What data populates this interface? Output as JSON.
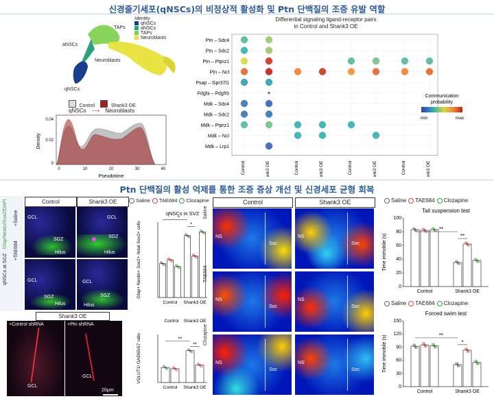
{
  "titles": {
    "top": "신경줄기세포(qNSCs)의 비정상적 활성화 및 Ptn 단백질의 조증 유발 역할",
    "bottom": "Ptn 단백질의 활성 억제를 통한 조증 증상 개선 및 신경세포 균형 회복"
  },
  "umap": {
    "legend_title": "Identity",
    "identities": [
      {
        "name": "qNSCs",
        "color": "#1a3e8c"
      },
      {
        "name": "aNSCs",
        "color": "#2aa37c"
      },
      {
        "name": "TAPs",
        "color": "#7cd04a"
      },
      {
        "name": "Neuroblasts",
        "color": "#e8e23a"
      }
    ],
    "cluster_labels": {
      "taps": "TAPs",
      "ansc": "aNSCs",
      "nb": "Neuroblasts",
      "qnsc": "qNSCs"
    },
    "conditions": [
      {
        "name": "Control",
        "color": "#dddddd"
      },
      {
        "name": "Shank3 OE",
        "color": "#a02020"
      }
    ],
    "trajectory": {
      "from": "qNSCs",
      "to": "Neuroblasts"
    }
  },
  "density": {
    "ylabel": "Density",
    "xlabel": "Pseudotime",
    "yticks": [
      "0.04",
      "0.02",
      "0"
    ],
    "xticks": [
      "0",
      "10",
      "20",
      "30",
      "40"
    ]
  },
  "bubble": {
    "title_line1": "Differential signaling ligand-receptor pairs",
    "title_line2": "in Control and Shank3 OE",
    "pairs": [
      "Ptn – Sdc4",
      "Ptn – Sdc2",
      "Ptn – Ptprz1",
      "Ptn – Ncl",
      "Psap – Gpr37l1",
      "Pdgfa – Pdgfrb",
      "Mdk – Sdc4",
      "Mdk – Sdc2",
      "Mdk – Ptprz1",
      "Mdk – Ncl",
      "Mdk – Lrp1"
    ],
    "conditions": [
      "Control",
      "Shank3 OE"
    ],
    "groups": [
      {
        "name": "qNSCs > qNSCs",
        "color": "#c02828"
      },
      {
        "name": "qNSCs > aNSCs",
        "color": "#7a9ad8"
      },
      {
        "name": "qNSCs > TAPs",
        "color": "#8ec9a8"
      },
      {
        "name": "qNSCs > NBs",
        "color": "#a8d88a"
      }
    ],
    "legend_title_line1": "Communication",
    "legend_title_line2": "probability",
    "legend_min": "min",
    "legend_max": "max",
    "dots": [
      [
        0,
        0,
        0.35
      ],
      [
        0,
        1,
        0.45
      ],
      [
        1,
        0,
        0.3
      ],
      [
        1,
        1,
        0.45
      ],
      [
        2,
        0,
        0.55
      ],
      [
        2,
        1,
        0.95
      ],
      [
        3,
        0,
        0.85
      ],
      [
        3,
        1,
        1.0
      ],
      [
        4,
        0,
        0.25
      ],
      [
        4,
        1,
        0.25
      ],
      [
        5,
        1,
        0.05
      ],
      [
        6,
        0,
        0.15
      ],
      [
        6,
        1,
        0.1
      ],
      [
        7,
        0,
        0.15
      ],
      [
        7,
        1,
        0.15
      ],
      [
        8,
        0,
        0.35
      ],
      [
        8,
        1,
        0.4
      ],
      [
        10,
        1,
        0.1
      ],
      [
        3,
        2,
        0.8
      ],
      [
        3,
        3,
        0.95
      ],
      [
        8,
        2,
        0.3
      ],
      [
        8,
        3,
        0.3
      ],
      [
        9,
        2,
        0.3
      ],
      [
        9,
        3,
        0.3
      ],
      [
        2,
        4,
        0.35
      ],
      [
        2,
        5,
        0.4
      ],
      [
        3,
        4,
        0.75
      ],
      [
        3,
        5,
        0.85
      ],
      [
        8,
        4,
        0.3
      ],
      [
        9,
        5,
        0.3
      ],
      [
        2,
        6,
        0.35
      ],
      [
        2,
        7,
        0.35
      ],
      [
        3,
        6,
        0.8
      ],
      [
        3,
        7,
        0.85
      ]
    ]
  },
  "legend_treat": [
    "Saline",
    "TAE684",
    "Clozapine"
  ],
  "treat_colors": {
    "Saline": "#666666",
    "TAE684": "#e04040",
    "Clozapine": "#30a030"
  },
  "micro": {
    "col_control": "Control",
    "col_shank": "Shank3 OE",
    "side_label": "qNSCs at SGZ",
    "stain": "Gfap/Nestin/Sox2/DAPI",
    "row_saline": "+Saline",
    "row_tae": "+TAE684",
    "gcl": "GCL",
    "sgz": "SGZ",
    "hilus": "Hilus",
    "shrna_title": "Shank3 OE",
    "shrna_control": "+Control shRNA",
    "shrna_ptn": "+Ptn shRNA",
    "scale": "20μm"
  },
  "qnsc_bar": {
    "title": "qNSCs in SVZ",
    "ylabel": "Gfap+ Nestin+ Sox2+ /total Sox2+ cells",
    "cats": [
      "Control",
      "Shank3 OE"
    ],
    "values": [
      [
        4.5,
        5.0,
        4.1
      ],
      [
        8.2,
        5.5,
        8.7
      ]
    ],
    "ylim": [
      0,
      10
    ],
    "sig": [
      "*",
      "*"
    ]
  },
  "vglut_bar": {
    "title_cats": [
      "Control",
      "Shank3 OE"
    ],
    "ylabel": "VGLUT1/ GAD65/67 ratio",
    "cats": [
      "Control",
      "Shank3 OE"
    ],
    "values": [
      [
        2.5,
        2.3
      ],
      [
        5.3,
        2.9
      ]
    ],
    "ylim": [
      0,
      8
    ],
    "sig": [
      "**",
      "**"
    ]
  },
  "heatmaps": {
    "col_control": "Control",
    "col_shank": "Shank3 OE",
    "rows": [
      "Saline",
      "TAE684",
      "Clozapine"
    ],
    "ns": "NS",
    "soc": "Soc"
  },
  "tst": {
    "title": "Tail suspension test",
    "ylabel": "Time immobile (s)",
    "cats": [
      "Control",
      "Shank3 OE"
    ],
    "values": [
      [
        83,
        82,
        83
      ],
      [
        35,
        62,
        38
      ]
    ],
    "ylim": [
      0,
      100
    ],
    "yticks": [
      "0",
      "20",
      "40",
      "60",
      "80",
      "100"
    ],
    "sig": [
      "**",
      "**"
    ]
  },
  "fst": {
    "title": "Forced swim test",
    "ylabel": "Time immobile (s)",
    "cats": [
      "Control",
      "Shank3 OE"
    ],
    "values": [
      [
        92,
        95,
        93
      ],
      [
        50,
        83,
        55
      ]
    ],
    "ylim": [
      0,
      150
    ],
    "yticks": [
      "0",
      "30",
      "60",
      "90",
      "120",
      "150"
    ],
    "sig": [
      "**",
      "*"
    ]
  }
}
